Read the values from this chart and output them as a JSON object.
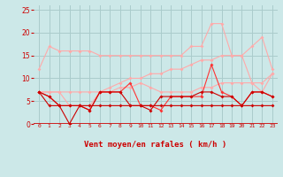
{
  "background_color": "#cce8e8",
  "grid_color": "#aacccc",
  "x_label": "Vent moyen/en rafales ( km/h )",
  "x_ticks": [
    0,
    1,
    2,
    3,
    4,
    5,
    6,
    7,
    8,
    9,
    10,
    11,
    12,
    13,
    14,
    15,
    16,
    17,
    18,
    19,
    20,
    21,
    22,
    23
  ],
  "ylim": [
    0,
    26
  ],
  "yticks": [
    0,
    5,
    10,
    15,
    20,
    25
  ],
  "series": [
    {
      "color": "#ffaaaa",
      "linewidth": 0.8,
      "markersize": 2.0,
      "values": [
        12,
        17,
        16,
        16,
        16,
        16,
        15,
        15,
        15,
        15,
        15,
        15,
        15,
        15,
        15,
        17,
        17,
        22,
        22,
        15,
        15,
        17,
        19,
        12
      ]
    },
    {
      "color": "#ffaaaa",
      "linewidth": 0.8,
      "markersize": 2.0,
      "values": [
        7,
        7,
        7,
        7,
        7,
        7,
        7,
        8,
        9,
        10,
        10,
        11,
        11,
        12,
        12,
        13,
        14,
        14,
        15,
        15,
        15,
        9,
        7,
        11
      ]
    },
    {
      "color": "#ffaaaa",
      "linewidth": 0.8,
      "markersize": 2.0,
      "values": [
        7,
        7,
        7,
        4,
        4,
        4,
        7,
        7,
        8,
        8,
        9,
        8,
        7,
        7,
        7,
        7,
        8,
        8,
        9,
        9,
        9,
        9,
        9,
        11
      ]
    },
    {
      "color": "#ff3333",
      "linewidth": 0.8,
      "markersize": 2.0,
      "values": [
        7,
        6,
        4,
        4,
        4,
        3,
        7,
        7,
        7,
        9,
        4,
        4,
        3,
        6,
        6,
        6,
        6,
        13,
        7,
        6,
        4,
        7,
        7,
        6
      ]
    },
    {
      "color": "#cc0000",
      "linewidth": 0.8,
      "markersize": 2.0,
      "values": [
        7,
        4,
        4,
        4,
        4,
        4,
        4,
        4,
        4,
        4,
        4,
        4,
        4,
        4,
        4,
        4,
        4,
        4,
        4,
        4,
        4,
        4,
        4,
        4
      ]
    },
    {
      "color": "#cc0000",
      "linewidth": 0.8,
      "markersize": 2.0,
      "values": [
        7,
        6,
        4,
        0,
        4,
        3,
        7,
        7,
        7,
        4,
        4,
        3,
        6,
        6,
        6,
        6,
        7,
        7,
        6,
        6,
        4,
        7,
        7,
        6
      ]
    }
  ],
  "arrow_chars": [
    "↑",
    "↗→",
    "→",
    "→",
    "↗",
    "↗",
    "↘",
    "↘",
    "↓",
    "↓",
    "↘",
    "↙",
    "↓",
    "↓",
    "↓",
    "↓",
    "↓",
    "↓",
    "↓",
    "↖",
    "→",
    "↘",
    "↓",
    "↓"
  ]
}
